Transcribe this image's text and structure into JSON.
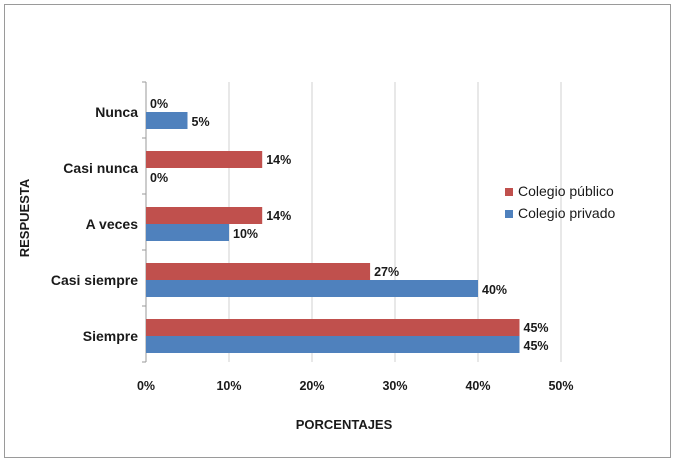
{
  "chart_data": {
    "type": "bar",
    "orientation": "horizontal",
    "categories": [
      "Nunca",
      "Casi nunca",
      "A veces",
      "Casi siempre",
      "Siempre"
    ],
    "series": [
      {
        "name": "Colegio público",
        "color": "#C0504D",
        "values": [
          0,
          14,
          14,
          27,
          45
        ],
        "labels": [
          "0%",
          "14%",
          "14%",
          "27%",
          "45%"
        ]
      },
      {
        "name": "Colegio privado",
        "color": "#4F81BD",
        "values": [
          5,
          0,
          10,
          40,
          45
        ],
        "labels": [
          "5%",
          "0%",
          "10%",
          "40%",
          "45%"
        ]
      }
    ],
    "xlabel": "PORCENTAJES",
    "ylabel": "RESPUESTA",
    "xlim": [
      0,
      50
    ],
    "xticks": [
      0,
      10,
      20,
      30,
      40,
      50
    ],
    "xtick_labels": [
      "0%",
      "10%",
      "20%",
      "30%",
      "40%",
      "50%"
    ],
    "grid": "vertical",
    "legend_position": "right"
  }
}
